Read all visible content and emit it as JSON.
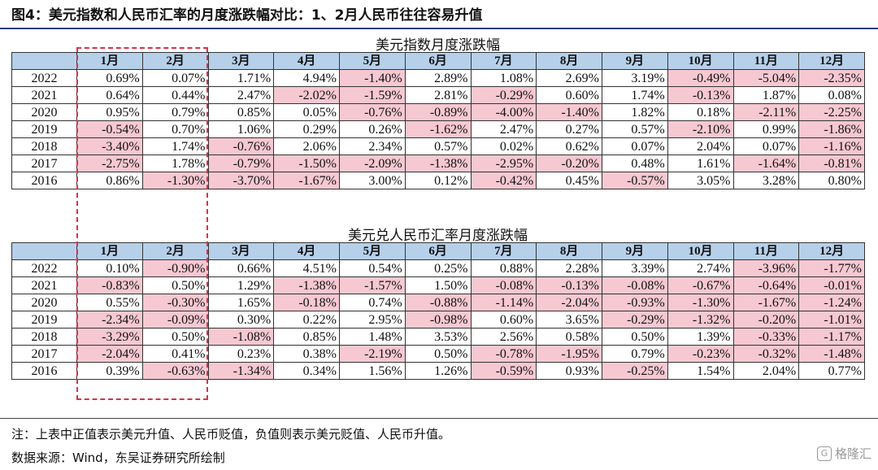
{
  "figure_title": "图4：美元指数和人民币汇率的月度涨跌幅对比：1、2月人民币往往容易升值",
  "months": [
    "1月",
    "2月",
    "3月",
    "4月",
    "5月",
    "6月",
    "7月",
    "8月",
    "9月",
    "10月",
    "11月",
    "12月"
  ],
  "colors": {
    "header_bg": "#b6d0ea",
    "negative_bg": "#f6c8d2",
    "highlight_border": "#d8324a",
    "title_rule": "#1f3d7a"
  },
  "table1": {
    "caption": "美元指数月度涨跌幅",
    "rows": [
      {
        "year": "2022",
        "values": [
          "0.69%",
          "0.07%",
          "1.71%",
          "4.94%",
          "-1.40%",
          "2.89%",
          "1.08%",
          "2.69%",
          "3.19%",
          "-0.49%",
          "-5.04%",
          "-2.35%"
        ]
      },
      {
        "year": "2021",
        "values": [
          "0.64%",
          "0.44%",
          "2.47%",
          "-2.02%",
          "-1.59%",
          "2.81%",
          "-0.29%",
          "0.60%",
          "1.74%",
          "-0.13%",
          "1.87%",
          "0.08%"
        ]
      },
      {
        "year": "2020",
        "values": [
          "0.95%",
          "0.79%",
          "0.85%",
          "0.05%",
          "-0.76%",
          "-0.89%",
          "-4.00%",
          "-1.40%",
          "1.82%",
          "0.18%",
          "-2.11%",
          "-2.25%"
        ]
      },
      {
        "year": "2019",
        "values": [
          "-0.54%",
          "0.70%",
          "1.06%",
          "0.29%",
          "0.26%",
          "-1.62%",
          "2.47%",
          "0.27%",
          "0.57%",
          "-2.10%",
          "0.99%",
          "-1.86%"
        ]
      },
      {
        "year": "2018",
        "values": [
          "-3.40%",
          "1.74%",
          "-0.76%",
          "2.06%",
          "2.34%",
          "0.57%",
          "0.02%",
          "0.62%",
          "0.07%",
          "2.04%",
          "0.07%",
          "-1.16%"
        ]
      },
      {
        "year": "2017",
        "values": [
          "-2.75%",
          "1.78%",
          "-0.79%",
          "-1.50%",
          "-2.09%",
          "-1.38%",
          "-2.95%",
          "-0.20%",
          "0.48%",
          "1.61%",
          "-1.64%",
          "-0.81%"
        ]
      },
      {
        "year": "2016",
        "values": [
          "0.86%",
          "-1.30%",
          "-3.70%",
          "-1.67%",
          "3.00%",
          "0.12%",
          "-0.42%",
          "0.45%",
          "-0.57%",
          "3.05%",
          "3.28%",
          "0.80%"
        ]
      }
    ]
  },
  "table2": {
    "caption": "美元兑人民币汇率月度涨跌幅",
    "rows": [
      {
        "year": "2022",
        "values": [
          "0.10%",
          "-0.90%",
          "0.66%",
          "4.51%",
          "0.54%",
          "0.25%",
          "0.88%",
          "2.28%",
          "3.39%",
          "2.74%",
          "-3.96%",
          "-1.77%"
        ]
      },
      {
        "year": "2021",
        "values": [
          "-0.83%",
          "0.50%",
          "1.29%",
          "-1.38%",
          "-1.57%",
          "1.50%",
          "-0.08%",
          "-0.13%",
          "-0.08%",
          "-0.67%",
          "-0.64%",
          "-0.01%"
        ]
      },
      {
        "year": "2020",
        "values": [
          "0.55%",
          "-0.30%",
          "1.65%",
          "-0.18%",
          "0.74%",
          "-0.88%",
          "-1.14%",
          "-2.04%",
          "-0.93%",
          "-1.30%",
          "-1.67%",
          "-1.24%"
        ]
      },
      {
        "year": "2019",
        "values": [
          "-2.34%",
          "-0.09%",
          "0.30%",
          "0.22%",
          "2.95%",
          "-0.98%",
          "0.60%",
          "3.65%",
          "-0.29%",
          "-1.32%",
          "-0.20%",
          "-1.01%"
        ]
      },
      {
        "year": "2018",
        "values": [
          "-3.29%",
          "0.50%",
          "-1.08%",
          "0.85%",
          "1.48%",
          "3.53%",
          "2.56%",
          "0.58%",
          "0.50%",
          "1.39%",
          "-0.33%",
          "-1.17%"
        ]
      },
      {
        "year": "2017",
        "values": [
          "-2.04%",
          "0.41%",
          "0.23%",
          "0.38%",
          "-2.19%",
          "0.50%",
          "-0.78%",
          "-1.95%",
          "0.79%",
          "-0.23%",
          "-0.32%",
          "-1.48%"
        ]
      },
      {
        "year": "2016",
        "values": [
          "0.39%",
          "-0.63%",
          "-1.34%",
          "0.34%",
          "1.56%",
          "1.26%",
          "-0.59%",
          "0.93%",
          "-0.25%",
          "1.54%",
          "2.04%",
          "0.77%"
        ]
      }
    ]
  },
  "note": "注：上表中正值表示美元升值、人民币贬值，负值则表示美元贬值、人民币升值。",
  "source": "数据来源：Wind，东吴证券研究所绘制",
  "watermark": "格隆汇"
}
